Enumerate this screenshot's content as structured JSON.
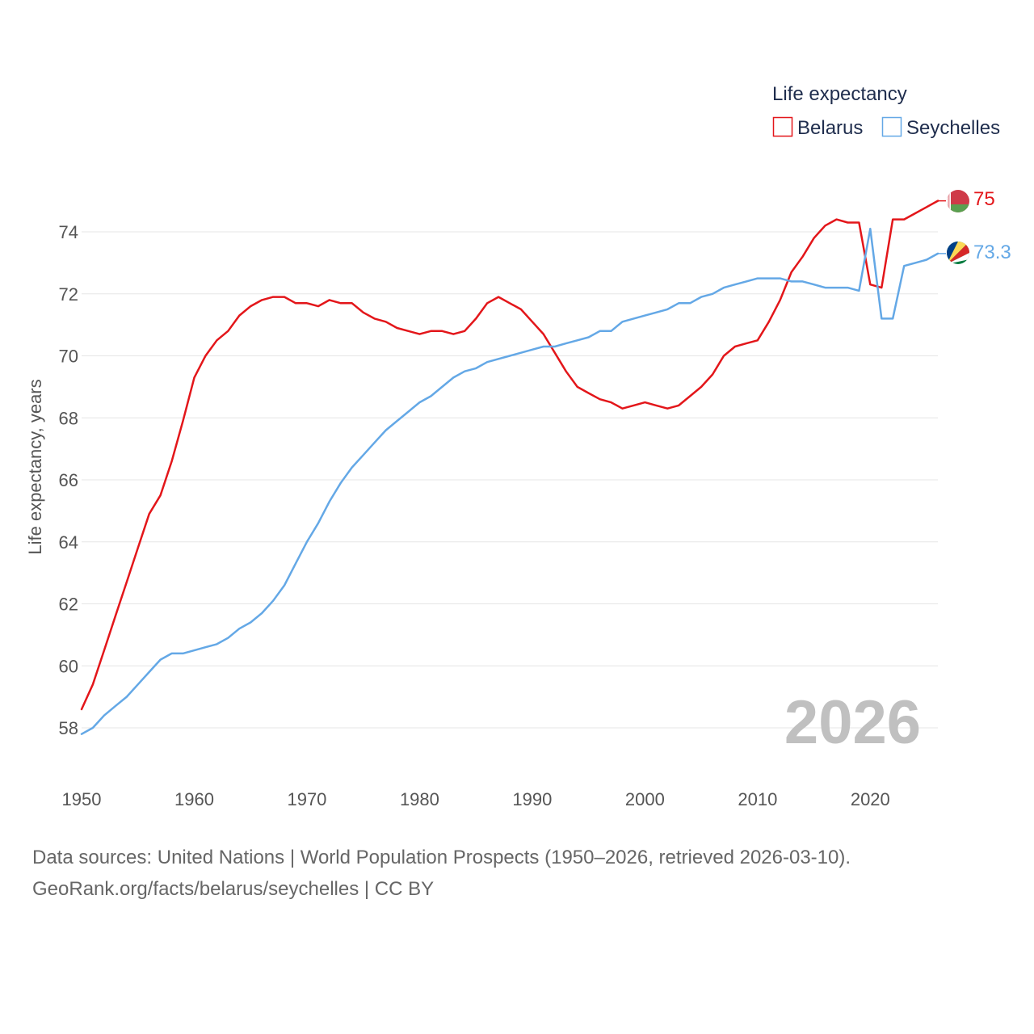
{
  "chart_data": {
    "type": "line",
    "title": "",
    "xlabel": "",
    "ylabel": "Life expectancy, years",
    "xlim": [
      1950,
      2026
    ],
    "ylim": [
      57,
      76
    ],
    "x_ticks": [
      1950,
      1960,
      1970,
      1980,
      1990,
      2000,
      2010,
      2020
    ],
    "y_ticks": [
      58,
      60,
      62,
      64,
      66,
      68,
      70,
      72,
      74
    ],
    "grid": true,
    "legend": {
      "title": "Life expectancy",
      "position": "top-right"
    },
    "watermark_year": "2026",
    "x": [
      1950,
      1951,
      1952,
      1953,
      1954,
      1955,
      1956,
      1957,
      1958,
      1959,
      1960,
      1961,
      1962,
      1963,
      1964,
      1965,
      1966,
      1967,
      1968,
      1969,
      1970,
      1971,
      1972,
      1973,
      1974,
      1975,
      1976,
      1977,
      1978,
      1979,
      1980,
      1981,
      1982,
      1983,
      1984,
      1985,
      1986,
      1987,
      1988,
      1989,
      1990,
      1991,
      1992,
      1993,
      1994,
      1995,
      1996,
      1997,
      1998,
      1999,
      2000,
      2001,
      2002,
      2003,
      2004,
      2005,
      2006,
      2007,
      2008,
      2009,
      2010,
      2011,
      2012,
      2013,
      2014,
      2015,
      2016,
      2017,
      2018,
      2019,
      2020,
      2021,
      2022,
      2023,
      2024,
      2025,
      2026
    ],
    "series": [
      {
        "name": "Belarus",
        "color": "#e3161a",
        "end_label": "75",
        "values": [
          58.6,
          59.4,
          60.5,
          61.6,
          62.7,
          63.8,
          64.9,
          65.5,
          66.6,
          67.9,
          69.3,
          70.0,
          70.5,
          70.8,
          71.3,
          71.6,
          71.8,
          71.9,
          71.9,
          71.7,
          71.7,
          71.6,
          71.8,
          71.7,
          71.7,
          71.4,
          71.2,
          71.1,
          70.9,
          70.8,
          70.7,
          70.8,
          70.8,
          70.7,
          70.8,
          71.2,
          71.7,
          71.9,
          71.7,
          71.5,
          71.1,
          70.7,
          70.1,
          69.5,
          69.0,
          68.8,
          68.6,
          68.5,
          68.3,
          68.4,
          68.5,
          68.4,
          68.3,
          68.4,
          68.7,
          69.0,
          69.4,
          70.0,
          70.3,
          70.4,
          70.5,
          71.1,
          71.8,
          72.7,
          73.2,
          73.8,
          74.2,
          74.4,
          74.3,
          74.3,
          72.3,
          72.2,
          74.4,
          74.4,
          74.6,
          74.8,
          75.0
        ]
      },
      {
        "name": "Seychelles",
        "color": "#64a8e6",
        "end_label": "73.3",
        "values": [
          57.8,
          58.0,
          58.4,
          58.7,
          59.0,
          59.4,
          59.8,
          60.2,
          60.4,
          60.4,
          60.5,
          60.6,
          60.7,
          60.9,
          61.2,
          61.4,
          61.7,
          62.1,
          62.6,
          63.3,
          64.0,
          64.6,
          65.3,
          65.9,
          66.4,
          66.8,
          67.2,
          67.6,
          67.9,
          68.2,
          68.5,
          68.7,
          69.0,
          69.3,
          69.5,
          69.6,
          69.8,
          69.9,
          70.0,
          70.1,
          70.2,
          70.3,
          70.3,
          70.4,
          70.5,
          70.6,
          70.8,
          70.8,
          71.1,
          71.2,
          71.3,
          71.4,
          71.5,
          71.7,
          71.7,
          71.9,
          72.0,
          72.2,
          72.3,
          72.4,
          72.5,
          72.5,
          72.5,
          72.4,
          72.4,
          72.3,
          72.2,
          72.2,
          72.2,
          72.1,
          74.1,
          71.2,
          71.2,
          72.9,
          73.0,
          73.1,
          73.3
        ]
      }
    ]
  },
  "footer": {
    "source_line": "Data sources: United Nations | World Population Prospects (1950–2026, retrieved 2026-03-10).",
    "credit_line": "GeoRank.org/facts/belarus/seychelles | CC BY"
  }
}
